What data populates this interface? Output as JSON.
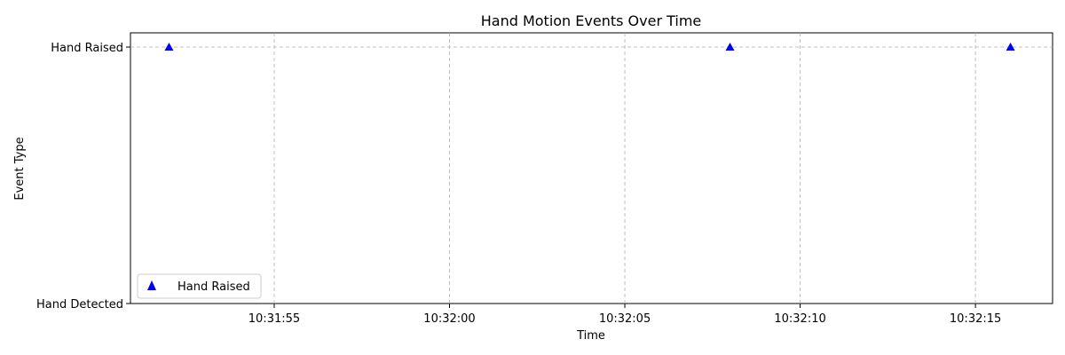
{
  "chart_data": {
    "type": "scatter",
    "title": "Hand Motion Events Over Time",
    "xlabel": "Time",
    "ylabel": "Event Type",
    "x_ticks": [
      "10:31:55",
      "10:32:00",
      "10:32:05",
      "10:32:10",
      "10:32:15"
    ],
    "x_tick_seconds": [
      55,
      60,
      65,
      70,
      75
    ],
    "x_range_seconds": [
      50.9,
      77.2
    ],
    "y_categories": [
      "Hand Detected",
      "Hand Raised"
    ],
    "grid": true,
    "legend_position": "lower-left",
    "series": [
      {
        "name": "Hand Raised",
        "marker": "triangle-up",
        "color": "#0000ff",
        "x": [
          "10:31:52",
          "10:32:08",
          "10:32:16"
        ],
        "x_seconds": [
          52,
          68,
          76
        ],
        "y": [
          "Hand Raised",
          "Hand Raised",
          "Hand Raised"
        ]
      }
    ]
  }
}
